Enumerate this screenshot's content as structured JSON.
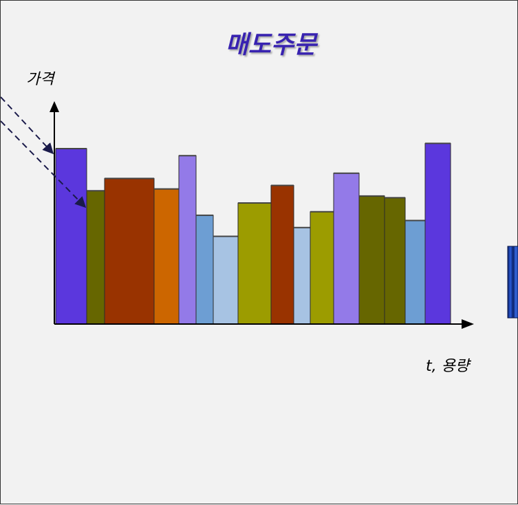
{
  "chart_data": {
    "type": "bar",
    "title": "매도주문",
    "xlabel": "t, 용량",
    "ylabel": "가격",
    "grid": false,
    "legend": "none",
    "ylim": [
      0,
      100
    ],
    "bars": [
      {
        "width": 45,
        "value": 100,
        "color": "#5b37dd"
      },
      {
        "width": 26,
        "value": 76,
        "color": "#666600"
      },
      {
        "width": 72,
        "value": 83,
        "color": "#993300"
      },
      {
        "width": 36,
        "value": 77,
        "color": "#cc6600"
      },
      {
        "width": 25,
        "value": 96,
        "color": "#937ae8"
      },
      {
        "width": 25,
        "value": 62,
        "color": "#6d9ed3"
      },
      {
        "width": 36,
        "value": 50,
        "color": "#a7c3e3"
      },
      {
        "width": 48,
        "value": 69,
        "color": "#9c9c00"
      },
      {
        "width": 33,
        "value": 79,
        "color": "#993300"
      },
      {
        "width": 24,
        "value": 55,
        "color": "#a7c3e3"
      },
      {
        "width": 34,
        "value": 64,
        "color": "#9c9c00"
      },
      {
        "width": 37,
        "value": 86,
        "color": "#937ae8"
      },
      {
        "width": 37,
        "value": 73,
        "color": "#666600"
      },
      {
        "width": 30,
        "value": 72,
        "color": "#666600"
      },
      {
        "width": 29,
        "value": 59,
        "color": "#6d9ed3"
      },
      {
        "width": 37,
        "value": 103,
        "color": "#5b37dd"
      }
    ]
  },
  "colors": {
    "title": "#3723b0",
    "axis": "#000000",
    "arrow": "#1a1a4a",
    "decor_box": "#0f2a7a"
  }
}
